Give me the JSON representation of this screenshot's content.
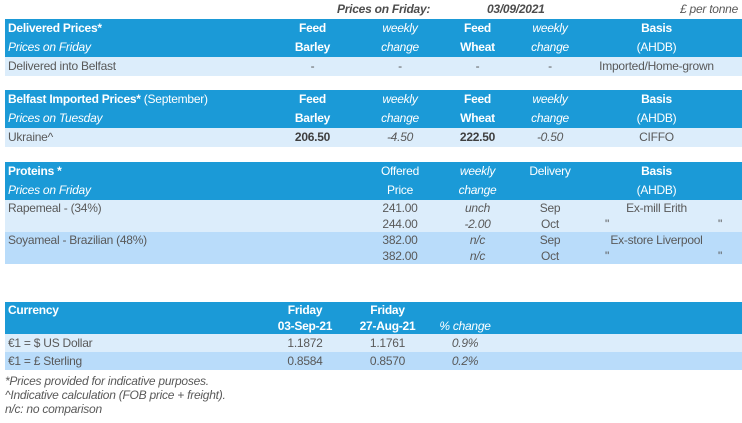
{
  "meta": {
    "prices_on_label": "Prices on Friday:",
    "prices_on_date": "03/09/2021",
    "unit": "£ per tonne"
  },
  "colors": {
    "header_blue": "#1B9AD7",
    "row_light_blue": "#DCEDFB",
    "row_medium_blue": "#B9DCFA",
    "text_gray": "#595959",
    "text_dark": "#3F3F3F",
    "header_text": "#FFFFFF"
  },
  "delivered_table": {
    "title": "Delivered Prices*",
    "subtitle": "Prices on Friday",
    "headers": {
      "barley_line1": "Feed",
      "barley_line2": "Barley",
      "barley_chg_line1": "weekly",
      "barley_chg_line2": "change",
      "wheat_line1": "Feed",
      "wheat_line2": "Wheat",
      "wheat_chg_line1": "weekly",
      "wheat_chg_line2": "change",
      "basis_line1": "Basis",
      "basis_line2": "(AHDB)"
    },
    "rows": [
      {
        "label": "Delivered into Belfast",
        "barley": "-",
        "barley_change": "-",
        "wheat": "-",
        "wheat_change": "-",
        "basis": "Imported/Home-grown"
      }
    ]
  },
  "belfast_table": {
    "title": "Belfast Imported Prices*",
    "title_suffix": " (September)",
    "subtitle": "Prices on Tuesday",
    "headers": {
      "barley_line1": "Feed",
      "barley_line2": "Barley",
      "barley_chg_line1": "weekly",
      "barley_chg_line2": "change",
      "wheat_line1": "Feed",
      "wheat_line2": "Wheat",
      "wheat_chg_line1": "weekly",
      "wheat_chg_line2": "change",
      "basis_line1": "Basis",
      "basis_line2": "(AHDB)"
    },
    "rows": [
      {
        "label": "Ukraine^",
        "barley": "206.50",
        "barley_change": "-4.50",
        "wheat": "222.50",
        "wheat_change": "-0.50",
        "basis": "CIFFO"
      }
    ]
  },
  "proteins_table": {
    "title": "Proteins *",
    "subtitle": "Prices on Friday",
    "headers": {
      "price_line1": "Offered",
      "price_line2": "Price",
      "chg_line1": "weekly",
      "chg_line2": "change",
      "delivery_line1": "Delivery",
      "delivery_line2": "",
      "basis_line1": "Basis",
      "basis_line2": "(AHDB)"
    },
    "rows": [
      {
        "label": "Rapemeal - (34%)",
        "price": "241.00",
        "change": "unch",
        "delivery": "Sep",
        "basis": "Ex-mill Erith"
      },
      {
        "label": "",
        "price": "244.00",
        "change": "-2.00",
        "delivery": "Oct",
        "basis_quote_left": "\"",
        "basis_quote_right": "\""
      },
      {
        "label": "Soyameal - Brazilian (48%)",
        "price": "382.00",
        "change": "n/c",
        "delivery": "Sep",
        "basis": "Ex-store Liverpool"
      },
      {
        "label": "",
        "price": "382.00",
        "change": "n/c",
        "delivery": "Oct",
        "basis_quote_left": "\"",
        "basis_quote_right": "\""
      }
    ]
  },
  "currency_table": {
    "title": "Currency",
    "headers": {
      "current_line1": "Friday",
      "current_line2": "03-Sep-21",
      "previous_line1": "Friday",
      "previous_line2": "27-Aug-21",
      "pct_line1": "",
      "pct_line2": "% change"
    },
    "rows": [
      {
        "label": "€1 = $ US Dollar",
        "current": "1.1872",
        "previous": "1.1761",
        "pct_change": "0.9%"
      },
      {
        "label": "€1 = £ Sterling",
        "current": "0.8584",
        "previous": "0.8570",
        "pct_change": "0.2%"
      }
    ]
  },
  "footnotes": {
    "line1": "*Prices provided for indicative purposes.",
    "line2": "^Indicative calculation (FOB price + freight).",
    "line3": "n/c: no comparison"
  }
}
